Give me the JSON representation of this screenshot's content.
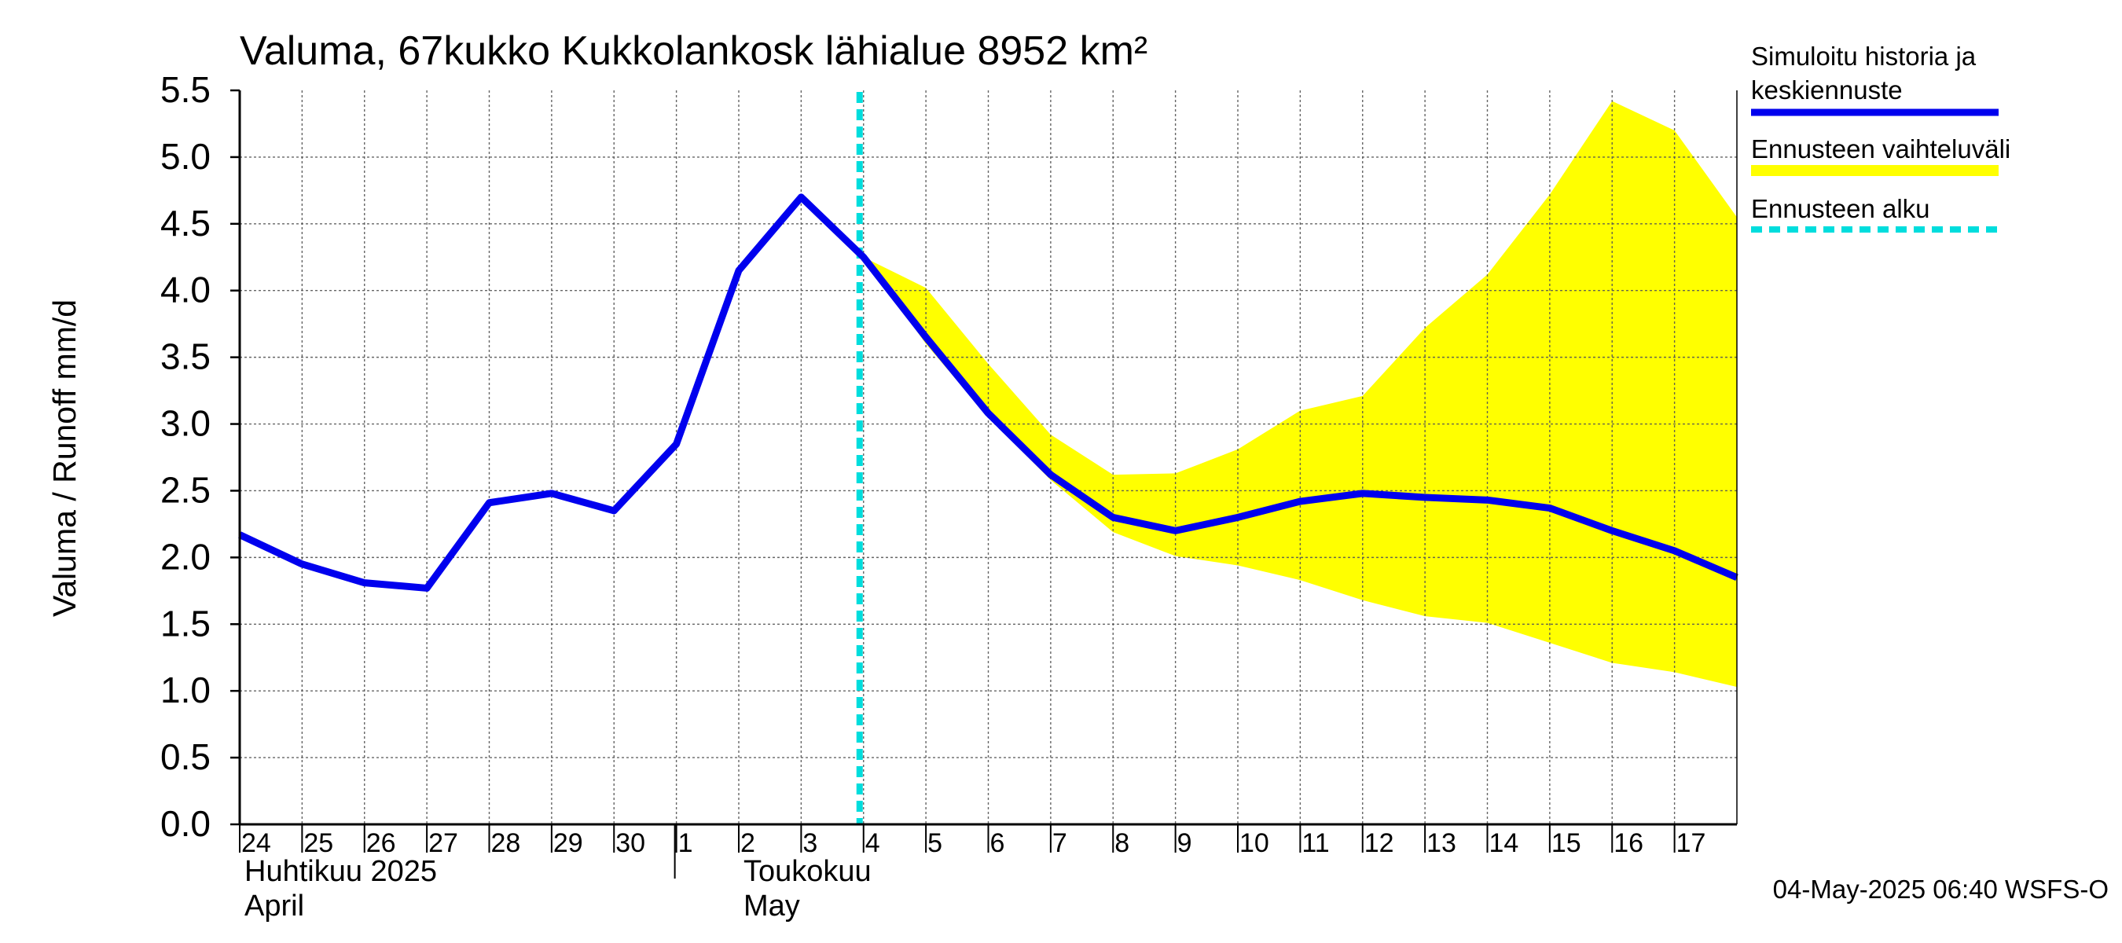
{
  "chart_data": {
    "type": "line",
    "title": "Valuma, 67kukko Kukkolankosk lähialue 8952 km²",
    "ylabel": "Valuma / Runoff     mm/d",
    "ylim": [
      0.0,
      5.5
    ],
    "y_ticks": [
      "0.0",
      "0.5",
      "1.0",
      "1.5",
      "2.0",
      "2.5",
      "3.0",
      "3.5",
      "4.0",
      "4.5",
      "5.0",
      "5.5"
    ],
    "y_tick_values": [
      0.0,
      0.5,
      1.0,
      1.5,
      2.0,
      2.5,
      3.0,
      3.5,
      4.0,
      4.5,
      5.0,
      5.5
    ],
    "x_start": "2025-04-24",
    "x_end": "2025-05-18",
    "x_ticks": [
      "2025-04-24",
      "2025-04-25",
      "2025-04-26",
      "2025-04-27",
      "2025-04-28",
      "2025-04-29",
      "2025-04-30",
      "2025-05-01",
      "2025-05-02",
      "2025-05-03",
      "2025-05-04",
      "2025-05-05",
      "2025-05-06",
      "2025-05-07",
      "2025-05-08",
      "2025-05-09",
      "2025-05-10",
      "2025-05-11",
      "2025-05-12",
      "2025-05-13",
      "2025-05-14",
      "2025-05-15",
      "2025-05-16",
      "2025-05-17"
    ],
    "x_tick_labels": [
      "24",
      "25",
      "26",
      "27",
      "28",
      "29",
      "30",
      "1",
      "2",
      "3",
      "4",
      "5",
      "6",
      "7",
      "8",
      "9",
      "10",
      "11",
      "12",
      "13",
      "14",
      "15",
      "16",
      "17"
    ],
    "month_labels": [
      {
        "date": "2025-04-24",
        "fi": "Huhtikuu  2025",
        "en": "April"
      },
      {
        "date": "2025-05-02",
        "fi": "Toukokuu",
        "en": "May"
      }
    ],
    "month_separator": "2025-05-01",
    "grid": true,
    "legend_position": "right",
    "forecast_start": "2025-05-04",
    "series": [
      {
        "name": "Simuloitu historia ja keskiennuste",
        "color": "#0000ee",
        "points": [
          [
            "2025-04-24",
            2.17
          ],
          [
            "2025-04-25",
            1.95
          ],
          [
            "2025-04-26",
            1.81
          ],
          [
            "2025-04-27",
            1.77
          ],
          [
            "2025-04-28",
            2.41
          ],
          [
            "2025-04-29",
            2.48
          ],
          [
            "2025-04-30",
            2.35
          ],
          [
            "2025-05-01",
            2.85
          ],
          [
            "2025-05-02",
            4.15
          ],
          [
            "2025-05-03",
            4.7
          ],
          [
            "2025-05-04",
            4.25
          ],
          [
            "2025-05-05",
            3.65
          ],
          [
            "2025-05-06",
            3.08
          ],
          [
            "2025-05-07",
            2.62
          ],
          [
            "2025-05-08",
            2.3
          ],
          [
            "2025-05-09",
            2.2
          ],
          [
            "2025-05-10",
            2.3
          ],
          [
            "2025-05-11",
            2.42
          ],
          [
            "2025-05-12",
            2.48
          ],
          [
            "2025-05-13",
            2.45
          ],
          [
            "2025-05-14",
            2.43
          ],
          [
            "2025-05-15",
            2.37
          ],
          [
            "2025-05-16",
            2.2
          ],
          [
            "2025-05-17",
            2.05
          ],
          [
            "2025-05-18",
            1.85
          ]
        ]
      },
      {
        "name": "Ennusteen vaihteluväli",
        "color": "#ffff00",
        "band": [
          [
            "2025-05-04",
            4.25,
            4.25
          ],
          [
            "2025-05-05",
            3.6,
            4.02
          ],
          [
            "2025-05-06",
            3.05,
            3.45
          ],
          [
            "2025-05-07",
            2.58,
            2.92
          ],
          [
            "2025-05-08",
            2.19,
            2.62
          ],
          [
            "2025-05-09",
            2.01,
            2.63
          ],
          [
            "2025-05-10",
            1.94,
            2.81
          ],
          [
            "2025-05-11",
            1.83,
            3.1
          ],
          [
            "2025-05-12",
            1.68,
            3.21
          ],
          [
            "2025-05-13",
            1.56,
            3.72
          ],
          [
            "2025-05-14",
            1.51,
            4.12
          ],
          [
            "2025-05-15",
            1.36,
            4.72
          ],
          [
            "2025-05-16",
            1.21,
            5.42
          ],
          [
            "2025-05-17",
            1.14,
            5.2
          ],
          [
            "2025-05-18",
            1.03,
            4.55
          ]
        ]
      },
      {
        "name": "Ennusteen alku",
        "color": "#00dddd"
      }
    ],
    "footer": "04-May-2025 06:40 WSFS-O"
  }
}
